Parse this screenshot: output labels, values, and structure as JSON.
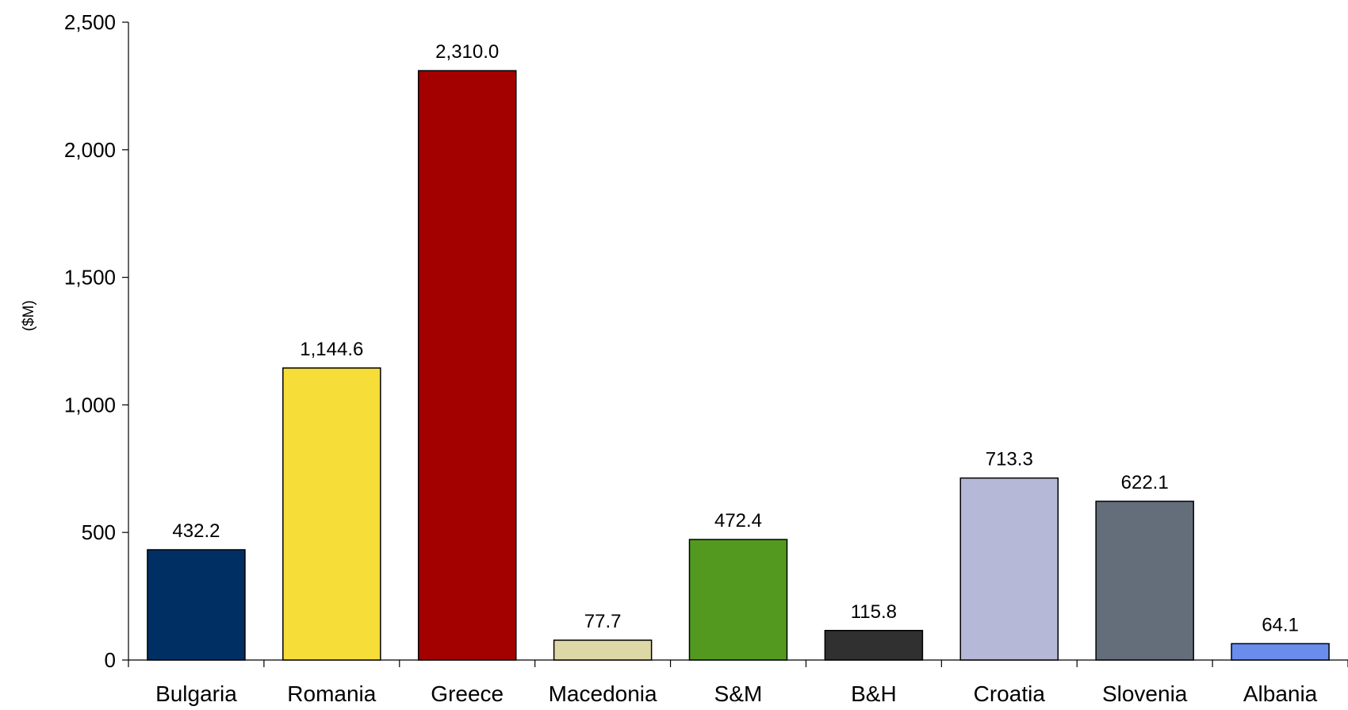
{
  "chart_data": {
    "type": "bar",
    "title": "",
    "xlabel": "",
    "ylabel": "($M)",
    "ylim": [
      0,
      2500
    ],
    "yticks": [
      0,
      500,
      1000,
      1500,
      2000,
      2500
    ],
    "ytick_labels": [
      "0",
      "500",
      "1,000",
      "1,500",
      "2,000",
      "2,500"
    ],
    "grid": false,
    "legend": "none",
    "categories": [
      "Bulgaria",
      "Romania",
      "Greece",
      "Macedonia",
      "S&M",
      "B&H",
      "Croatia",
      "Slovenia",
      "Albania"
    ],
    "values": [
      432.2,
      1144.6,
      2310.0,
      77.7,
      472.4,
      115.8,
      713.3,
      622.1,
      64.1
    ],
    "value_labels": [
      "432.2",
      "1,144.6",
      "2,310.0",
      "77.7",
      "472.4",
      "115.8",
      "713.3",
      "622.1",
      "64.1"
    ],
    "colors": [
      "#003063",
      "#f7dd37",
      "#a30000",
      "#ddd8a6",
      "#53991f",
      "#303030",
      "#b5b8d6",
      "#636e7a",
      "#6a8ded"
    ]
  }
}
